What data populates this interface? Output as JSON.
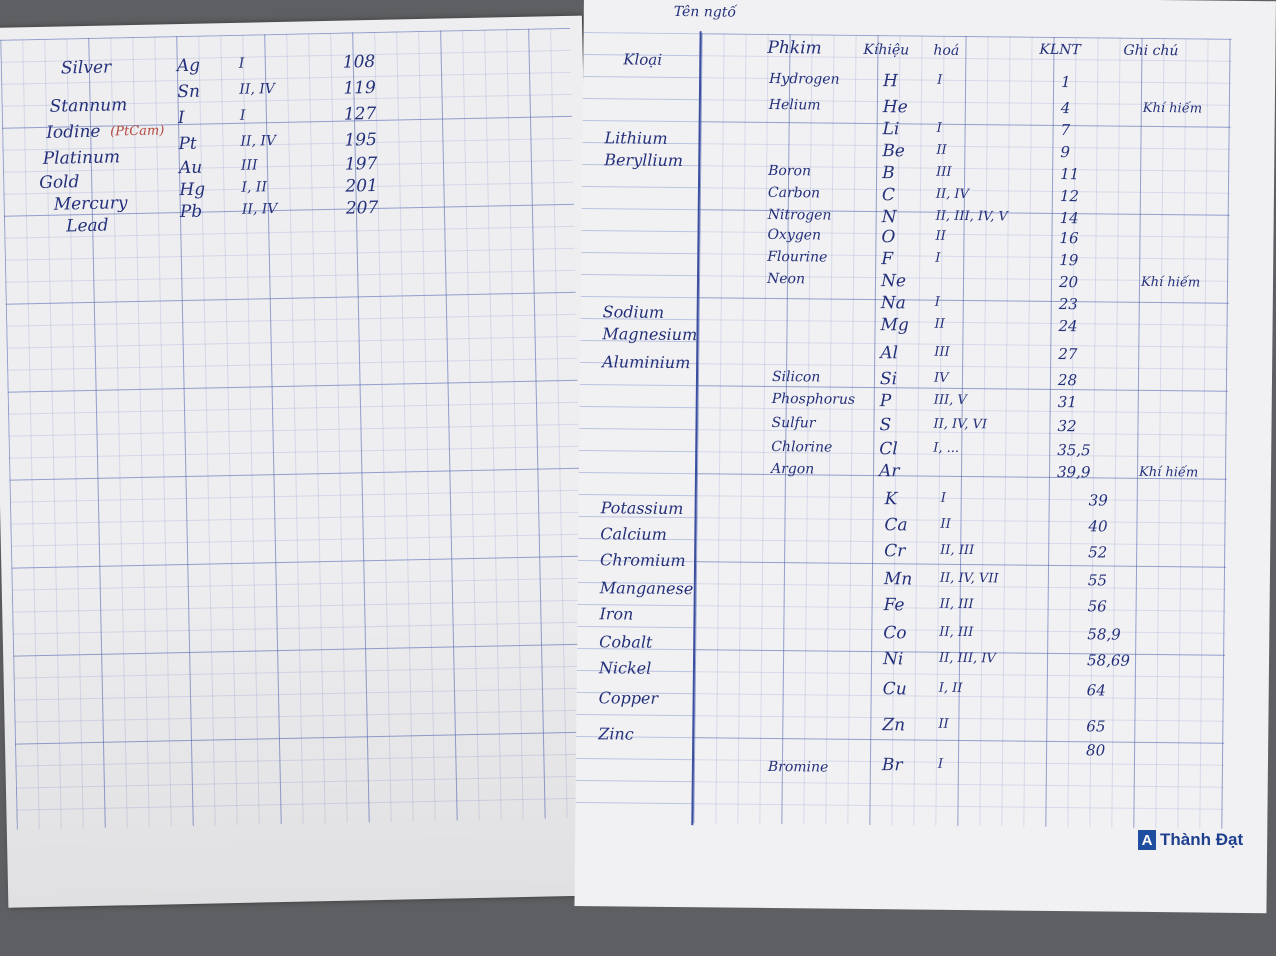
{
  "left_page": {
    "rows": [
      {
        "name": "Silver",
        "symbol": "Ag",
        "valence": "I",
        "mass": "108"
      },
      {
        "name": "Stannum",
        "symbol": "Sn",
        "valence": "II, IV",
        "mass": "119"
      },
      {
        "name": "Iodine",
        "note": "(PtCam)",
        "symbol": "I",
        "valence": "I",
        "mass": "127"
      },
      {
        "name": "Platinum",
        "symbol": "Pt",
        "valence": "II, IV",
        "mass": "195"
      },
      {
        "name": "Gold",
        "symbol": "Au",
        "valence": "III",
        "mass": "197"
      },
      {
        "name": "Mercury",
        "symbol": "Hg",
        "valence": "I, II",
        "mass": "201"
      },
      {
        "name": "Lead",
        "symbol": "Pb",
        "valence": "II, IV",
        "mass": "207"
      }
    ]
  },
  "right_page": {
    "top_note": "Tên ngtố",
    "headers": {
      "metal": "Kloại",
      "nonmetal": "Phkim",
      "symbol": "Kíhiệu",
      "valence": "hoá",
      "mass": "KLNT",
      "notes": "Ghi chú"
    },
    "rows": [
      {
        "metal": "",
        "nonmetal": "Hydrogen",
        "symbol": "H",
        "valence": "I",
        "mass": "1",
        "note": ""
      },
      {
        "metal": "",
        "nonmetal": "Helium",
        "symbol": "He",
        "valence": "",
        "mass": "4",
        "note": "Khí hiếm"
      },
      {
        "metal": "Lithium",
        "nonmetal": "",
        "symbol": "Li",
        "valence": "I",
        "mass": "7",
        "note": ""
      },
      {
        "metal": "Beryllium",
        "nonmetal": "",
        "symbol": "Be",
        "valence": "II",
        "mass": "9",
        "note": ""
      },
      {
        "metal": "",
        "nonmetal": "Boron",
        "symbol": "B",
        "valence": "III",
        "mass": "11",
        "note": ""
      },
      {
        "metal": "",
        "nonmetal": "Carbon",
        "symbol": "C",
        "valence": "II, IV",
        "mass": "12",
        "note": ""
      },
      {
        "metal": "",
        "nonmetal": "Nitrogen",
        "symbol": "N",
        "valence": "II, III, IV, V",
        "mass": "14",
        "note": ""
      },
      {
        "metal": "",
        "nonmetal": "Oxygen",
        "symbol": "O",
        "valence": "II",
        "mass": "16",
        "note": ""
      },
      {
        "metal": "",
        "nonmetal": "Flourine",
        "symbol": "F",
        "valence": "I",
        "mass": "19",
        "note": ""
      },
      {
        "metal": "",
        "nonmetal": "Neon",
        "symbol": "Ne",
        "valence": "",
        "mass": "20",
        "note": "Khí hiếm"
      },
      {
        "metal": "Sodium",
        "nonmetal": "",
        "symbol": "Na",
        "valence": "I",
        "mass": "23",
        "note": ""
      },
      {
        "metal": "Magnesium",
        "nonmetal": "",
        "symbol": "Mg",
        "valence": "II",
        "mass": "24",
        "note": ""
      },
      {
        "metal": "Aluminium",
        "nonmetal": "",
        "symbol": "Al",
        "valence": "III",
        "mass": "27",
        "note": ""
      },
      {
        "metal": "",
        "nonmetal": "Silicon",
        "symbol": "Si",
        "valence": "IV",
        "mass": "28",
        "note": ""
      },
      {
        "metal": "",
        "nonmetal": "Phosphorus",
        "symbol": "P",
        "valence": "III, V",
        "mass": "31",
        "note": ""
      },
      {
        "metal": "",
        "nonmetal": "Sulfur",
        "symbol": "S",
        "valence": "II, IV, VI",
        "mass": "32",
        "note": ""
      },
      {
        "metal": "",
        "nonmetal": "Chlorine",
        "symbol": "Cl",
        "valence": "I, ...",
        "mass": "35,5",
        "note": ""
      },
      {
        "metal": "",
        "nonmetal": "Argon",
        "symbol": "Ar",
        "valence": "",
        "mass": "39,9",
        "note": "Khí hiếm"
      },
      {
        "metal": "Potassium",
        "nonmetal": "",
        "symbol": "K",
        "valence": "I",
        "mass": "39",
        "note": ""
      },
      {
        "metal": "Calcium",
        "nonmetal": "",
        "symbol": "Ca",
        "valence": "II",
        "mass": "40",
        "note": ""
      },
      {
        "metal": "Chromium",
        "nonmetal": "",
        "symbol": "Cr",
        "valence": "II, III",
        "mass": "52",
        "note": ""
      },
      {
        "metal": "Manganese",
        "nonmetal": "",
        "symbol": "Mn",
        "valence": "II, IV, VII",
        "mass": "55",
        "note": ""
      },
      {
        "metal": "Iron",
        "nonmetal": "",
        "symbol": "Fe",
        "valence": "II, III",
        "mass": "56",
        "note": ""
      },
      {
        "metal": "Cobalt",
        "nonmetal": "",
        "symbol": "Co",
        "valence": "II, III",
        "mass": "58,9",
        "note": ""
      },
      {
        "metal": "Nickel",
        "nonmetal": "",
        "symbol": "Ni",
        "valence": "II, III, IV",
        "mass": "58,69",
        "note": ""
      },
      {
        "metal": "Copper",
        "nonmetal": "",
        "symbol": "Cu",
        "valence": "I, II",
        "mass": "64",
        "note": ""
      },
      {
        "metal": "Zinc",
        "nonmetal": "",
        "symbol": "Zn",
        "valence": "II",
        "mass": "65",
        "note": ""
      },
      {
        "metal": "",
        "nonmetal": "Bromine",
        "symbol": "Br",
        "valence": "I",
        "mass": "80",
        "note": ""
      }
    ]
  },
  "brand": {
    "mark": "A",
    "name": "Thành Đạt"
  },
  "colors": {
    "ink": "#24307a",
    "red_ink": "#b4473d",
    "grid": "#465aaa",
    "brand": "#1f3f8f"
  }
}
